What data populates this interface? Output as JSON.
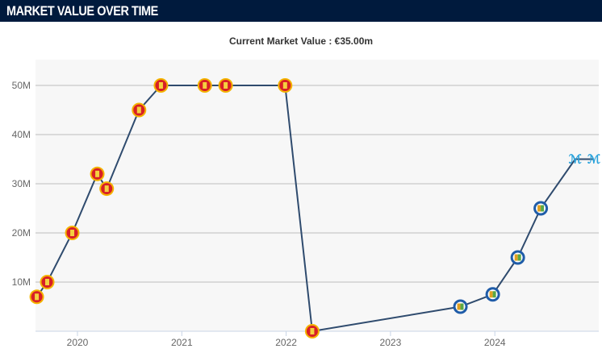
{
  "header": {
    "title": "MARKET VALUE OVER TIME"
  },
  "subtitle": "Current Market Value : €35.00m",
  "colors": {
    "header_bg": "#001a3d",
    "line": "#2f4b6e",
    "grid": "#d0d0d0",
    "plot_bg": "#f7f7f7",
    "man_utd": "#d81f26",
    "getafe": "#1f5ca8",
    "marseille": "#2aa3dc"
  },
  "chart_data": {
    "type": "line",
    "title": "Current Market Value : €35.00m",
    "xlabel": "",
    "ylabel": "",
    "xlim": [
      2019.6,
      2024.99
    ],
    "ylim": [
      0,
      55
    ],
    "x_ticks": [
      2020,
      2021,
      2022,
      2023,
      2024
    ],
    "x_tick_labels": [
      "2020",
      "2021",
      "2022",
      "2023",
      "2024"
    ],
    "y_ticks": [
      10,
      20,
      30,
      40,
      50
    ],
    "y_tick_labels": [
      "10M",
      "20M",
      "30M",
      "40M",
      "50M"
    ],
    "grid": true,
    "points": [
      {
        "x": 2019.61,
        "y": 7,
        "club": "man_utd"
      },
      {
        "x": 2019.71,
        "y": 10,
        "club": "man_utd"
      },
      {
        "x": 2019.95,
        "y": 20,
        "club": "man_utd"
      },
      {
        "x": 2020.19,
        "y": 32,
        "club": "man_utd"
      },
      {
        "x": 2020.28,
        "y": 29,
        "club": "man_utd"
      },
      {
        "x": 2020.59,
        "y": 45,
        "club": "man_utd"
      },
      {
        "x": 2020.8,
        "y": 50,
        "club": "man_utd"
      },
      {
        "x": 2021.22,
        "y": 50,
        "club": "man_utd"
      },
      {
        "x": 2021.42,
        "y": 50,
        "club": "man_utd"
      },
      {
        "x": 2021.99,
        "y": 50,
        "club": "man_utd"
      },
      {
        "x": 2022.25,
        "y": 0,
        "club": "man_utd"
      },
      {
        "x": 2023.67,
        "y": 5,
        "club": "getafe"
      },
      {
        "x": 2023.98,
        "y": 7.5,
        "club": "getafe"
      },
      {
        "x": 2024.22,
        "y": 15,
        "club": "getafe"
      },
      {
        "x": 2024.44,
        "y": 25,
        "club": "getafe"
      },
      {
        "x": 2024.77,
        "y": 35,
        "club": "marseille"
      },
      {
        "x": 2024.95,
        "y": 35,
        "club": "marseille"
      }
    ]
  }
}
